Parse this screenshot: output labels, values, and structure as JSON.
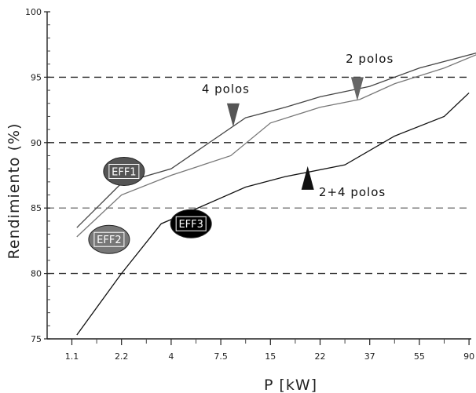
{
  "chart_data": {
    "type": "line",
    "title": "",
    "xlabel": "P [kW]",
    "ylabel": "Rendimiento (%)",
    "x_ticks": [
      "1.1",
      "2.2",
      "4",
      "7.5",
      "15",
      "22",
      "37",
      "55",
      "90"
    ],
    "y_ticks": [
      "75",
      "80",
      "85",
      "90",
      "95",
      "100"
    ],
    "ylim": [
      75,
      100
    ],
    "grid": "horizontal dashed at 80, 85, 90, 95",
    "series": [
      {
        "name": "",
        "color": "#444444",
        "x": [
          0.1,
          1,
          2,
          3.5,
          4.3,
          5,
          6,
          7,
          8.3
        ],
        "y": [
          83.5,
          86.9,
          88.0,
          91.9,
          92.7,
          93.5,
          94.3,
          95.7,
          97.0
        ]
      },
      {
        "name": "",
        "color": "#777777",
        "x": [
          0.1,
          1,
          2,
          3.2,
          4,
          5,
          5.8,
          6.5,
          7.5,
          8.2
        ],
        "y": [
          82.8,
          86.0,
          87.5,
          89.0,
          91.5,
          92.7,
          93.3,
          94.5,
          95.7,
          96.8
        ]
      },
      {
        "name": "",
        "color": "#111111",
        "x": [
          0.1,
          1,
          1.8,
          2.6,
          3.5,
          4.3,
          5.5,
          6.5,
          7.5
        ],
        "y": [
          75.3,
          80.0,
          83.8,
          85.1,
          86.6,
          87.4,
          88.3,
          90.5,
          92.0
        ],
        "end": [
          8.0,
          93.8
        ]
      }
    ],
    "annotations": [
      {
        "text": "2 polos",
        "x": 6.0,
        "y": 96.1
      },
      {
        "text": "4 polos",
        "x": 3.1,
        "y": 93.8
      },
      {
        "text": "2+4 polos",
        "x": 5.65,
        "y": 85.9
      }
    ],
    "arrows": [
      {
        "x": 5.75,
        "y": 95.0,
        "dir": "down",
        "color": "#666666"
      },
      {
        "x": 3.25,
        "y": 93.0,
        "dir": "down",
        "color": "#555555"
      },
      {
        "x": 4.75,
        "y": 88.2,
        "dir": "up",
        "color": "#111111"
      }
    ],
    "badges": [
      {
        "text": "EFF1",
        "x": 1.05,
        "y": 87.8,
        "fill": "#555555"
      },
      {
        "text": "EFF2",
        "x": 0.75,
        "y": 82.6,
        "fill": "#777777"
      },
      {
        "text": "EFF3",
        "x": 2.4,
        "y": 83.8,
        "fill": "#000000"
      }
    ]
  }
}
